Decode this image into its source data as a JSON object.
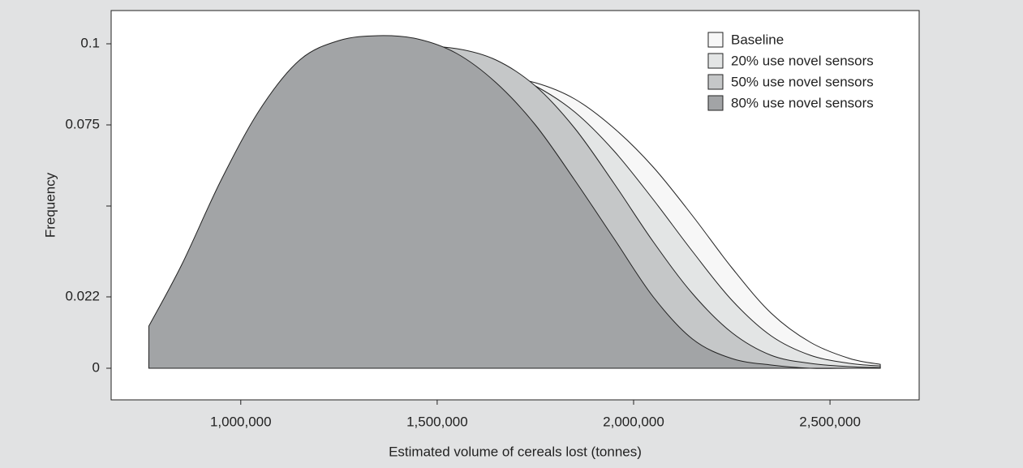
{
  "chart_data": {
    "type": "area",
    "x_label": "Estimated volume of cereals lost (tonnes)",
    "y_label": "Frequency",
    "x": [
      766000,
      850000,
      950000,
      1050000,
      1150000,
      1250000,
      1350000,
      1450000,
      1550000,
      1650000,
      1750000,
      1850000,
      1950000,
      2050000,
      2150000,
      2250000,
      2350000,
      2450000,
      2550000,
      2628000
    ],
    "series": [
      {
        "name": "Baseline",
        "color": "#f7f7f7",
        "values": [
          0.003,
          0.008,
          0.022,
          0.044,
          0.065,
          0.079,
          0.086,
          0.089,
          0.09,
          0.09,
          0.088,
          0.083,
          0.074,
          0.062,
          0.047,
          0.031,
          0.017,
          0.008,
          0.003,
          0.0012
        ]
      },
      {
        "name": "20% use novel sensors",
        "color": "#e3e5e5",
        "values": [
          0.004,
          0.012,
          0.03,
          0.052,
          0.071,
          0.084,
          0.091,
          0.094,
          0.094,
          0.092,
          0.087,
          0.079,
          0.067,
          0.052,
          0.036,
          0.021,
          0.01,
          0.004,
          0.0015,
          0.0007
        ]
      },
      {
        "name": "50% use novel sensors",
        "color": "#c5c7c8",
        "values": [
          0.0065,
          0.018,
          0.038,
          0.06,
          0.078,
          0.09,
          0.096,
          0.099,
          0.0985,
          0.095,
          0.087,
          0.074,
          0.057,
          0.039,
          0.023,
          0.011,
          0.004,
          0.0015,
          0.0005,
          0.0002
        ]
      },
      {
        "name": "80% use novel sensors",
        "color": "#a2a4a6",
        "values": [
          0.013,
          0.032,
          0.058,
          0.08,
          0.095,
          0.101,
          0.1025,
          0.1015,
          0.097,
          0.088,
          0.075,
          0.058,
          0.04,
          0.022,
          0.009,
          0.003,
          0.001,
          0,
          0,
          0
        ]
      }
    ],
    "xlim": [
      670000,
      2727000
    ],
    "ylim": [
      -0.00975,
      0.11025
    ],
    "xticks": [
      {
        "value": 1000000,
        "label": "1,000,000"
      },
      {
        "value": 1500000,
        "label": "1,500,000"
      },
      {
        "value": 2000000,
        "label": "2,000,000"
      },
      {
        "value": 2500000,
        "label": "2,500,000"
      }
    ],
    "yticks": [
      0,
      0.022,
      {
        "value": 0.05,
        "label": null
      },
      0.075,
      0.1
    ],
    "legend": "top-right",
    "grid": false
  }
}
